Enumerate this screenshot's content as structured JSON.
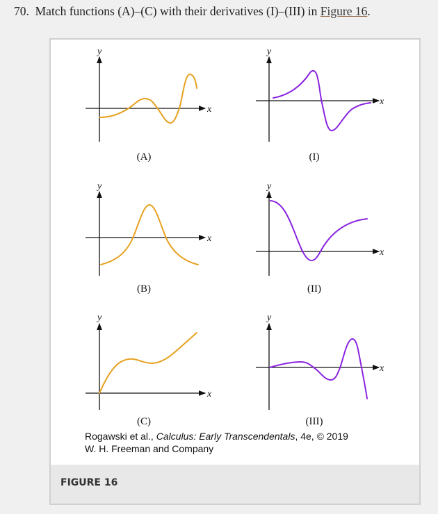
{
  "question": {
    "number": "70.",
    "text": "Match functions (A)–(C) with their derivatives (I)–(III) in",
    "link": "Figure 16",
    "end": "."
  },
  "figure": {
    "panels": [
      {
        "label": "(A)",
        "type": "function"
      },
      {
        "label": "(I)",
        "type": "derivative"
      },
      {
        "label": "(B)",
        "type": "function"
      },
      {
        "label": "(II)",
        "type": "derivative"
      },
      {
        "label": "(C)",
        "type": "function"
      },
      {
        "label": "(III)",
        "type": "derivative"
      }
    ],
    "axis_x": "x",
    "axis_y": "y",
    "credit_prefix": "Rogawski et al., ",
    "credit_title": "Calculus: Early Transcendentals",
    "credit_suffix": ", 4e, © 2019",
    "credit_line2": "W. H. Freeman and Company",
    "caption": "FIGURE 16",
    "colors": {
      "function": "#e6a11f",
      "derivative": "#8a24e0"
    }
  }
}
